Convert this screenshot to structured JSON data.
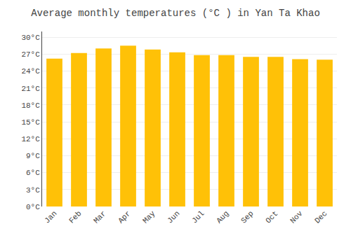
{
  "chart_data": {
    "type": "bar",
    "title": "Average monthly temperatures (°C ) in Yan Ta Khao",
    "categories": [
      "Jan",
      "Feb",
      "Mar",
      "Apr",
      "May",
      "Jun",
      "Jul",
      "Aug",
      "Sep",
      "Oct",
      "Nov",
      "Dec"
    ],
    "values": [
      26.2,
      27.2,
      28.0,
      28.5,
      27.8,
      27.3,
      26.8,
      26.8,
      26.5,
      26.5,
      26.1,
      26.0
    ],
    "color": "#FFC107",
    "ylim": [
      0,
      31
    ],
    "yticks": [
      {
        "value": 0,
        "label": "0°C"
      },
      {
        "value": 3,
        "label": "3°C"
      },
      {
        "value": 6,
        "label": "6°C"
      },
      {
        "value": 9,
        "label": "9°C"
      },
      {
        "value": 12,
        "label": "12°C"
      },
      {
        "value": 15,
        "label": "15°C"
      },
      {
        "value": 18,
        "label": "18°C"
      },
      {
        "value": 21,
        "label": "21°C"
      },
      {
        "value": 24,
        "label": "24°C"
      },
      {
        "value": 27,
        "label": "27°C"
      },
      {
        "value": 30,
        "label": "30°C"
      }
    ],
    "grid": true
  }
}
